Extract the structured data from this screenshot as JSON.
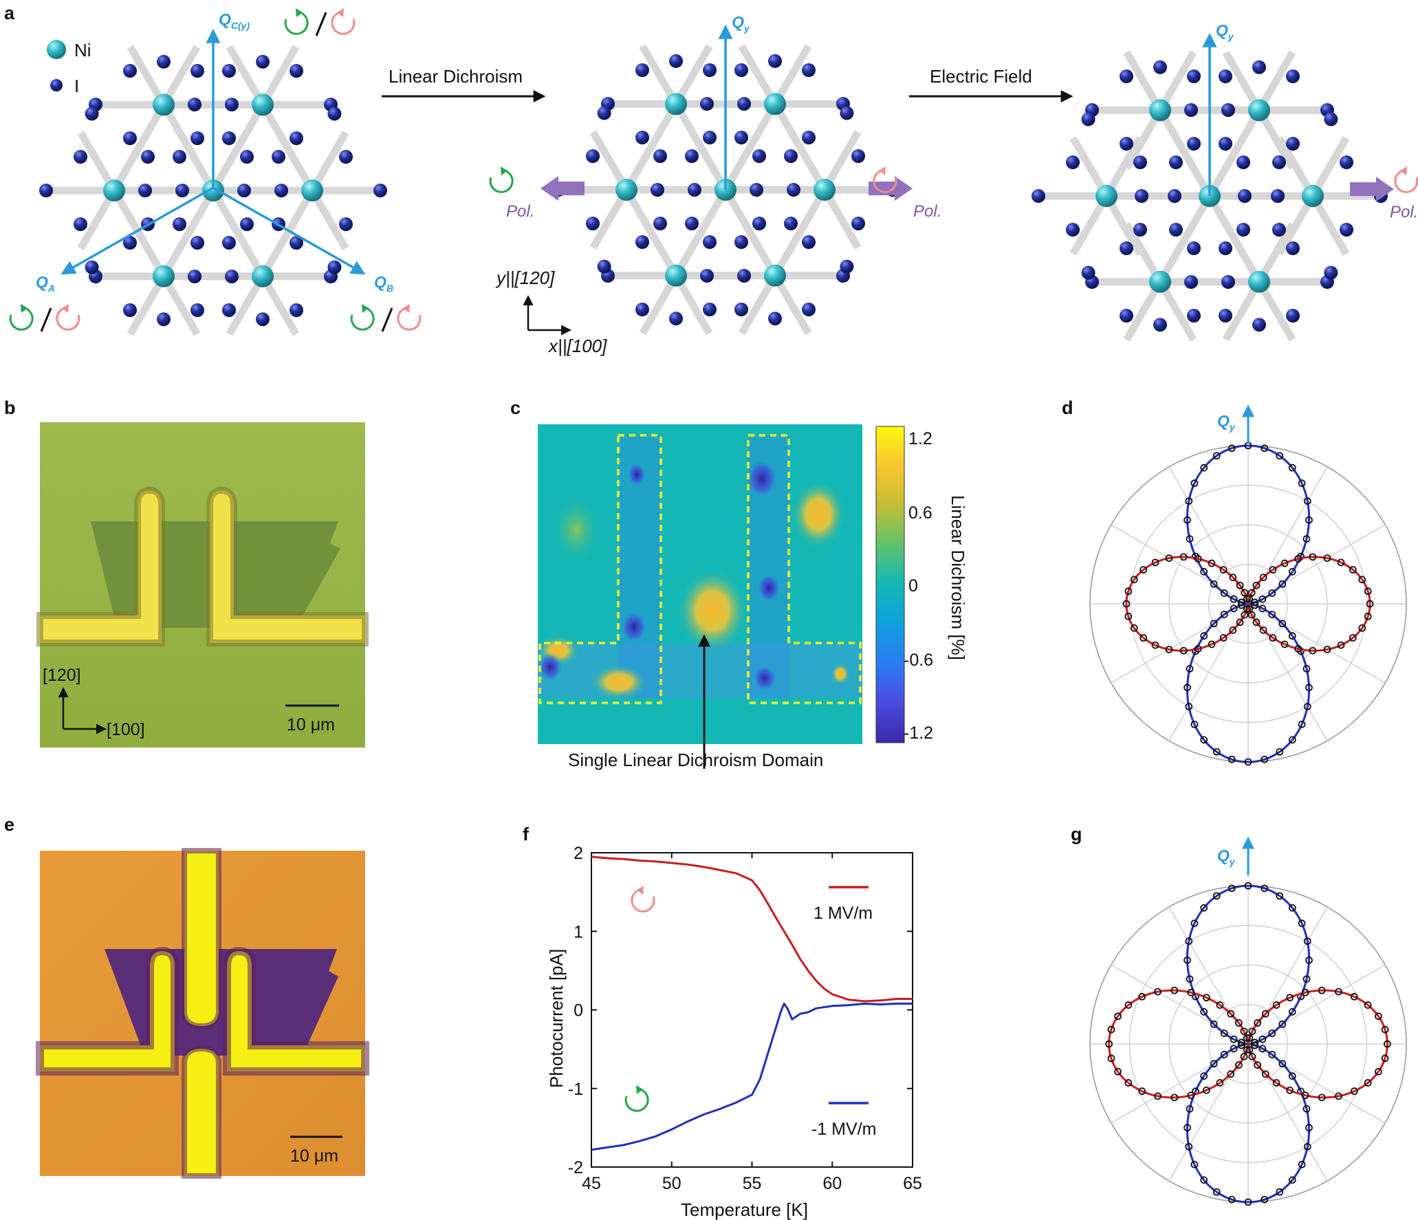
{
  "panel_labels": {
    "a": "a",
    "b": "b",
    "c": "c",
    "d": "d",
    "e": "e",
    "f": "f",
    "g": "g"
  },
  "panel_a": {
    "legend": {
      "ni": "Ni",
      "i": "I"
    },
    "arrow1_label": "Linear Dichroism",
    "arrow2_label": "Electric Field",
    "q_c_main": "Q",
    "q_c_sub": "C(y)",
    "q_a_main": "Q",
    "q_a_sub": "A",
    "q_b_main": "Q",
    "q_b_sub": "B",
    "q_y_main": "Q",
    "q_y_sub": "y",
    "pol": "Pol.",
    "axis_y": "y||[120]",
    "axis_x": "x||[100]",
    "colors": {
      "ni": "#2fb7c4",
      "i": "#1f2f9e",
      "bond": "#d7d7d7",
      "q_arrow": "#2a9ad8",
      "pol_arrow": "#9173bd",
      "circ_green": "#22a64a",
      "circ_pink": "#f08c8c"
    }
  },
  "panel_b": {
    "dir_y": "[120]",
    "dir_x": "[100]",
    "scalebar": "10 μm"
  },
  "panel_c": {
    "colorbar_ticks": [
      "1.2",
      "0.6",
      "0",
      "-0.6",
      "-1.2"
    ],
    "colorbar_label": "Linear Dichroism [%]",
    "annotation": "Single Linear Dichroism Domain"
  },
  "panel_d": {
    "q_main": "Q",
    "q_sub": "y"
  },
  "panel_e": {
    "scalebar": "10 μm"
  },
  "panel_g": {
    "q_main": "Q",
    "q_sub": "y"
  },
  "chart_data": [
    {
      "type": "line",
      "panel": "f",
      "xlabel": "Temperature [K]",
      "ylabel": "Photocurrent [pA]",
      "xlim": [
        45,
        65
      ],
      "ylim": [
        -2,
        2
      ],
      "xticks": [
        "45",
        "50",
        "55",
        "60",
        "65"
      ],
      "yticks": [
        "2",
        "1",
        "0",
        "-1",
        "-2"
      ],
      "series": [
        {
          "name": "1 MV/m",
          "color": "#c81e1e",
          "x": [
            45,
            46,
            47,
            48,
            49,
            50,
            51,
            52,
            53,
            54,
            55,
            55.5,
            56,
            56.5,
            57,
            57.5,
            58,
            58.5,
            59,
            59.5,
            60,
            61,
            62,
            63,
            64,
            65
          ],
          "y": [
            1.95,
            1.93,
            1.92,
            1.9,
            1.89,
            1.87,
            1.85,
            1.82,
            1.78,
            1.74,
            1.65,
            1.52,
            1.35,
            1.17,
            1.0,
            0.83,
            0.65,
            0.5,
            0.37,
            0.27,
            0.2,
            0.13,
            0.11,
            0.12,
            0.14,
            0.14
          ]
        },
        {
          "name": "-1 MV/m",
          "color": "#1f2fb8",
          "x": [
            45,
            46,
            47,
            48,
            49,
            50,
            51,
            52,
            53,
            54,
            55,
            55.5,
            56,
            56.5,
            56.8,
            57,
            57.2,
            57.5,
            58,
            58.5,
            59,
            60,
            61,
            62,
            63,
            64,
            65
          ],
          "y": [
            -1.78,
            -1.75,
            -1.72,
            -1.67,
            -1.61,
            -1.52,
            -1.42,
            -1.33,
            -1.26,
            -1.18,
            -1.08,
            -0.88,
            -0.55,
            -0.22,
            -0.02,
            0.08,
            0.02,
            -0.12,
            -0.05,
            -0.03,
            0.02,
            0.05,
            0.06,
            0.08,
            0.07,
            0.08,
            0.08
          ]
        }
      ],
      "legend_position": "right",
      "annotation_circ_pink": "top-left",
      "annotation_circ_green": "bottom-left"
    },
    {
      "type": "polar",
      "panel": "d",
      "angles_deg": [
        0,
        30,
        60,
        90,
        120,
        150,
        180,
        210,
        240,
        270,
        300,
        330
      ],
      "series": [
        {
          "name": "",
          "color": "#1f2fb8",
          "shape": "cos^2",
          "max": 1.0,
          "lobe_axis_deg": 90
        },
        {
          "name": "",
          "color": "#c81e1e",
          "shape": "cos^2",
          "max": 0.77,
          "lobe_axis_deg": 0
        }
      ]
    },
    {
      "type": "polar",
      "panel": "g",
      "angles_deg": [
        0,
        30,
        60,
        90,
        120,
        150,
        180,
        210,
        240,
        270,
        300,
        330
      ],
      "series": [
        {
          "name": "",
          "color": "#1f2fb8",
          "shape": "cos^2",
          "max": 1.0,
          "lobe_axis_deg": 90
        },
        {
          "name": "",
          "color": "#c81e1e",
          "shape": "cos^2",
          "max": 0.88,
          "lobe_axis_deg": 0
        }
      ]
    }
  ]
}
